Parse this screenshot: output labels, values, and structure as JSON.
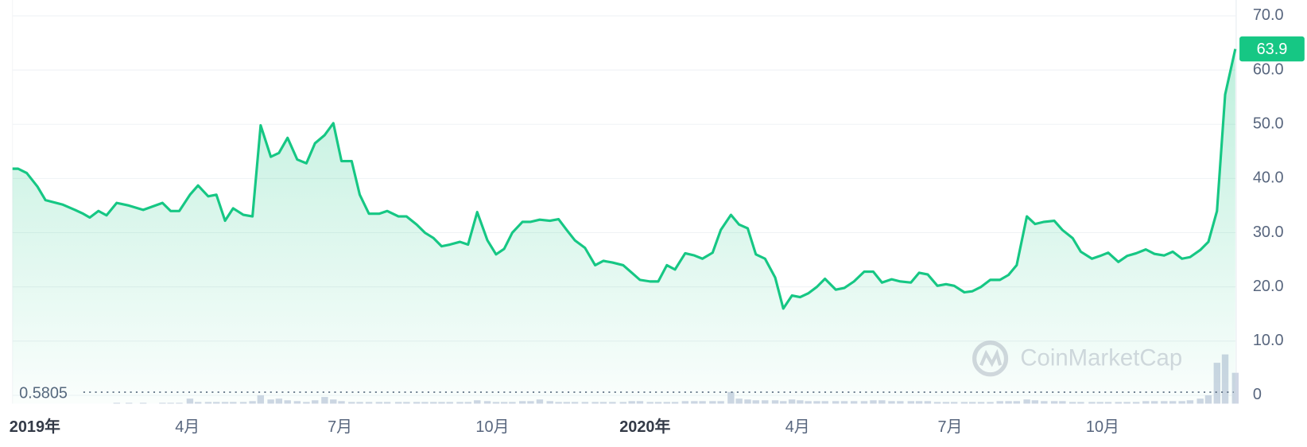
{
  "chart_data": {
    "type": "line",
    "x": [
      -0.44,
      -0.33,
      -0.16,
      0.05,
      0.21,
      0.54,
      0.79,
      0.95,
      1.08,
      1.25,
      1.41,
      1.61,
      1.85,
      2.13,
      2.51,
      2.67,
      2.84,
      3.05,
      3.21,
      3.41,
      3.57,
      3.74,
      3.9,
      4.1,
      4.28,
      4.44,
      4.64,
      4.8,
      4.97,
      5.16,
      5.34,
      5.51,
      5.7,
      5.87,
      6.03,
      6.23,
      6.39,
      6.57,
      6.77,
      6.93,
      7.15,
      7.31,
      7.51,
      7.67,
      7.84,
      8.0,
      8.16,
      8.36,
      8.52,
      8.7,
      8.9,
      9.07,
      9.23,
      9.39,
      9.59,
      9.75,
      9.93,
      10.13,
      10.3,
      10.46,
      10.62,
      10.82,
      11.02,
      11.18,
      11.36,
      11.57,
      11.74,
      11.9,
      12.1,
      12.26,
      12.43,
      12.59,
      12.79,
      12.97,
      13.13,
      13.33,
      13.49,
      13.69,
      13.85,
      14.02,
      14.18,
      14.36,
      14.56,
      14.72,
      14.89,
      15.05,
      15.21,
      15.38,
      15.54,
      15.75,
      15.92,
      16.11,
      16.31,
      16.49,
      16.66,
      16.85,
      17.02,
      17.23,
      17.39,
      17.56,
      17.75,
      17.92,
      18.08,
      18.28,
      18.44,
      18.61,
      18.79,
      18.98,
      19.15,
      19.31,
      19.51,
      19.67,
      19.85,
      20.05,
      20.21,
      20.41,
      20.57,
      20.79,
      20.95,
      21.11,
      21.31,
      21.48,
      21.66,
      21.85,
      22.02,
      22.21,
      22.38,
      22.56,
      22.72,
      22.92,
      23.08,
      23.25,
      23.41,
      23.61
    ],
    "series": [
      {
        "name": "price",
        "color": "#16c784",
        "values": [
          41.8,
          41.8,
          41,
          38.5,
          36,
          35.2,
          34.2,
          33.5,
          32.8,
          34,
          33.2,
          35.5,
          35,
          34.2,
          35.5,
          34,
          34,
          37,
          38.7,
          36.7,
          37,
          32.2,
          34.5,
          33.3,
          33,
          49.8,
          44,
          44.7,
          47.5,
          43.5,
          42.8,
          46.5,
          48,
          50.2,
          43.2,
          43.2,
          37,
          33.5,
          33.5,
          34,
          33,
          33,
          31.5,
          30,
          29,
          27.5,
          27.8,
          28.3,
          27.8,
          33.8,
          28.6,
          26,
          27,
          30,
          32,
          32,
          32.4,
          32.2,
          32.5,
          30.5,
          28.6,
          27.2,
          24,
          24.8,
          24.5,
          24,
          22.6,
          21.3,
          21,
          21,
          24,
          23.2,
          26.2,
          25.8,
          25.2,
          26.3,
          30.5,
          33.3,
          31.5,
          30.8,
          26,
          25.2,
          21.7,
          16,
          18.4,
          18.1,
          18.8,
          20,
          21.5,
          19.5,
          19.8,
          21,
          22.8,
          22.8,
          20.8,
          21.4,
          21,
          20.8,
          22.6,
          22.3,
          20.2,
          20.5,
          20.2,
          19,
          19.2,
          20,
          21.3,
          21.3,
          22.2,
          24,
          33,
          31.6,
          32,
          32.2,
          30.5,
          29,
          26.5,
          25.2,
          25.7,
          26.3,
          24.6,
          25.7,
          26.2,
          26.9,
          26.1,
          25.8,
          26.5,
          25.2,
          25.5,
          26.8,
          28.3,
          34,
          55.5,
          63.9
        ]
      },
      {
        "name": "volume",
        "color": "#cfd6e4",
        "axis": "y2",
        "values": [
          0,
          0,
          0,
          0,
          0,
          0,
          0,
          0,
          0,
          0,
          0,
          1,
          1,
          1,
          1,
          1,
          1,
          6,
          2,
          2,
          2,
          2,
          2,
          2,
          3,
          10,
          5,
          6,
          4,
          3,
          2,
          4,
          8,
          5,
          3,
          2,
          2,
          2,
          2,
          2,
          2,
          2,
          2,
          2,
          2,
          2,
          2,
          2,
          2,
          4,
          3,
          2,
          2,
          2,
          3,
          3,
          5,
          3,
          2,
          2,
          2,
          2,
          2,
          2,
          2,
          2,
          3,
          3,
          2,
          2,
          2,
          2,
          3,
          3,
          3,
          3,
          3,
          14,
          6,
          5,
          4,
          4,
          4,
          3,
          5,
          4,
          3,
          3,
          3,
          3,
          3,
          3,
          3,
          4,
          4,
          3,
          3,
          3,
          3,
          3,
          2,
          2,
          2,
          2,
          2,
          2,
          2,
          3,
          3,
          3,
          5,
          4,
          3,
          3,
          3,
          2,
          2,
          2,
          2,
          2,
          2,
          2,
          2,
          3,
          3,
          3,
          3,
          3,
          4,
          6,
          10,
          49,
          59,
          37
        ]
      }
    ],
    "xlim": [
      -0.44,
      23.61
    ],
    "xticks": [
      {
        "value": 0,
        "label": "2019年"
      },
      {
        "value": 3,
        "label": "4月"
      },
      {
        "value": 6,
        "label": "7月"
      },
      {
        "value": 9,
        "label": "10月"
      },
      {
        "value": 12,
        "label": "2020年"
      },
      {
        "value": 15,
        "label": "4月"
      },
      {
        "value": 18,
        "label": "7月"
      },
      {
        "value": 21,
        "label": "10月"
      }
    ],
    "ylim": [
      0,
      70
    ],
    "yticks": [
      0,
      {
        "value": 10,
        "label": "10.0"
      },
      {
        "value": 20,
        "label": "20.0"
      },
      {
        "value": 30,
        "label": "30.0"
      },
      {
        "value": 40,
        "label": "40.0"
      },
      {
        "value": 50,
        "label": "50.0"
      },
      {
        "value": 60,
        "label": "60.0"
      },
      {
        "value": 70,
        "label": "70.0"
      }
    ],
    "y2lim": [
      0,
      60
    ],
    "low_line": 0.5805,
    "watermark": "CoinMarketCap",
    "grid": true
  }
}
